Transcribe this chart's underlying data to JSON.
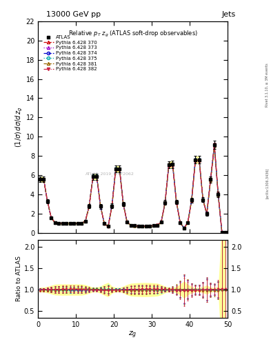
{
  "title_top": "13000 GeV pp",
  "title_right": "Jets",
  "subplot_title": "Relative $p_T$ $z_g$ (ATLAS soft-drop observables)",
  "ylabel_main": "(1/σ) dσ/d z_g",
  "ylabel_ratio": "Ratio to ATLAS",
  "xlabel": "z_g",
  "right_label": "Rivet 3.1.10, ≥ 3M events",
  "arxiv_label": "[arXiv:1306.3436]",
  "watermark": "ATLAS_2019_I1772062",
  "main_ylim": [
    0,
    22
  ],
  "main_yticks": [
    0,
    2,
    4,
    6,
    8,
    10,
    12,
    14,
    16,
    18,
    20,
    22
  ],
  "ratio_ylim": [
    0.35,
    2.15
  ],
  "ratio_yticks": [
    0.5,
    1.0,
    1.5,
    2.0
  ],
  "xlim": [
    0,
    50
  ],
  "xticks": [
    0,
    10,
    20,
    30,
    40,
    50
  ],
  "mc_colors": [
    "#cc0000",
    "#9900cc",
    "#0000cc",
    "#00aaaa",
    "#996600",
    "#cc2244"
  ],
  "mc_markers": [
    "^",
    "^",
    "o",
    "o",
    "^",
    "v"
  ],
  "mc_linestyles": [
    "--",
    ":",
    "--",
    ":",
    "--",
    "-."
  ],
  "mc_fills": [
    false,
    false,
    false,
    false,
    false,
    true
  ],
  "mc_labels": [
    "Pythia 6.428 370",
    "Pythia 6.428 373",
    "Pythia 6.428 374",
    "Pythia 6.428 375",
    "Pythia 6.428 381",
    "Pythia 6.428 382"
  ],
  "band_color": "#ffff99",
  "band_edge_color": "#cccc00",
  "atlas_color": "#000000"
}
